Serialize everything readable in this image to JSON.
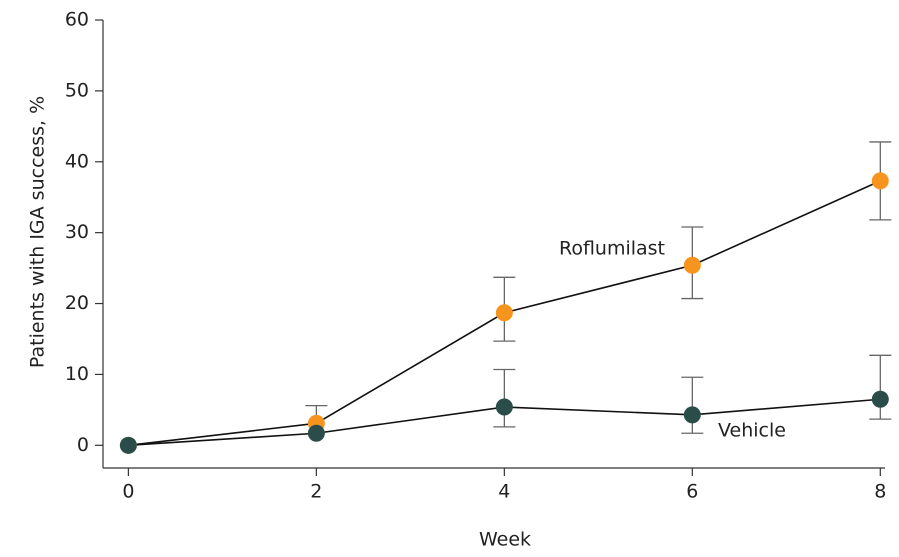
{
  "chart_data": {
    "type": "line",
    "x_label": "Week",
    "y_label": "Patients with IGA success, %",
    "x": [
      0,
      2,
      4,
      6,
      8
    ],
    "xlim": [
      -0.27,
      8.05
    ],
    "xticks": [
      0,
      2,
      4,
      6,
      8
    ],
    "ylim": [
      -3.2,
      60
    ],
    "yticks": [
      0,
      10,
      20,
      30,
      40,
      50,
      60
    ],
    "series": [
      {
        "name": "Roflumilast",
        "color": "#f7941d",
        "values": [
          0,
          3.1,
          18.7,
          25.4,
          37.3
        ],
        "error_upper": [
          null,
          5.6,
          23.7,
          30.8,
          42.8
        ],
        "error_lower": [
          null,
          null,
          14.7,
          20.7,
          31.8
        ]
      },
      {
        "name": "Vehicle",
        "color": "#2a4d4a",
        "values": [
          0,
          1.7,
          5.4,
          4.3,
          6.5
        ],
        "error_upper": [
          null,
          null,
          10.7,
          9.6,
          12.7
        ],
        "error_lower": [
          null,
          null,
          2.6,
          1.7,
          3.7
        ]
      }
    ]
  }
}
